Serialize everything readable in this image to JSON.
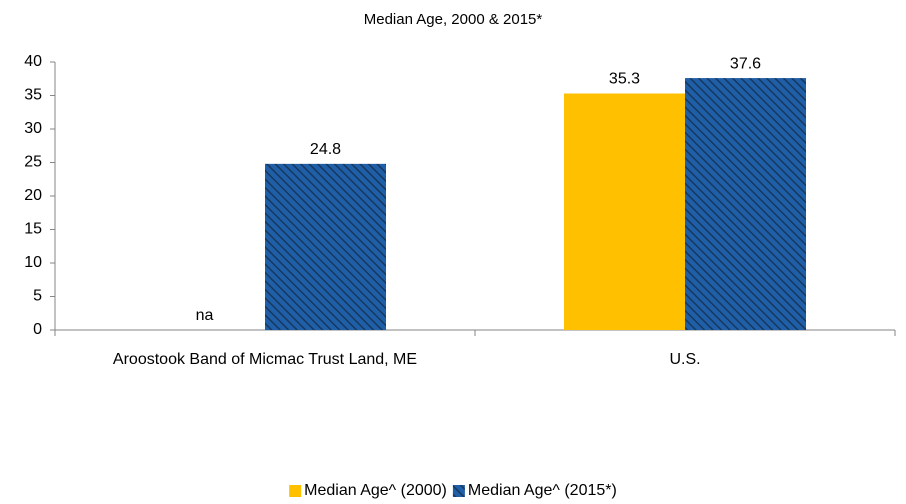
{
  "chart_data": {
    "type": "bar",
    "title": "Median Age, 2000 & 2015*",
    "categories": [
      "Aroostook Band of Micmac Trust Land, ME",
      "U.S."
    ],
    "series": [
      {
        "name": "Median Age^ (2000)",
        "color": "#ffc000",
        "values": [
          null,
          35.3
        ],
        "value_labels": [
          "na",
          "35.3"
        ]
      },
      {
        "name": "Median Age^ (2015*)",
        "color": "#1f5fa8",
        "pattern": "hatch",
        "values": [
          24.8,
          37.6
        ],
        "value_labels": [
          "24.8",
          "37.6"
        ]
      }
    ],
    "ylim": [
      0,
      40
    ],
    "yticks": [
      0,
      5,
      10,
      15,
      20,
      25,
      30,
      35,
      40
    ],
    "grid": false,
    "legend": "bottom"
  }
}
